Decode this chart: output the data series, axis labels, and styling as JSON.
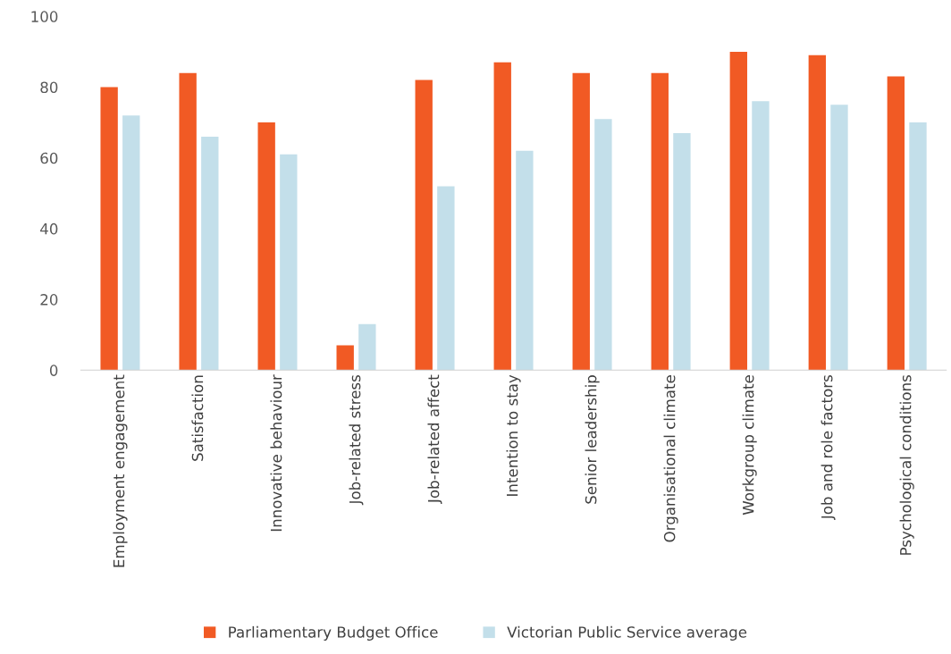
{
  "chart_data": {
    "type": "bar",
    "categories": [
      "Employment engagement",
      "Satisfaction",
      "Innovative behaviour",
      "Job-related stress",
      "Job-related affect",
      "Intention to stay",
      "Senior leadership",
      "Organisational climate",
      "Workgroup climate",
      "Job and role factors",
      "Psychological conditions"
    ],
    "series": [
      {
        "name": "Parliamentary Budget Office",
        "color": "#f15a24",
        "values": [
          80,
          84,
          70,
          7,
          82,
          87,
          84,
          84,
          90,
          89,
          83
        ]
      },
      {
        "name": "Victorian Public Service average",
        "color": "#c3dfea",
        "values": [
          72,
          66,
          61,
          13,
          52,
          62,
          71,
          67,
          76,
          75,
          70
        ]
      }
    ],
    "ylim": [
      0,
      100
    ],
    "yticks": [
      0,
      20,
      40,
      60,
      80,
      100
    ],
    "grid": false,
    "legend": "bottom"
  }
}
